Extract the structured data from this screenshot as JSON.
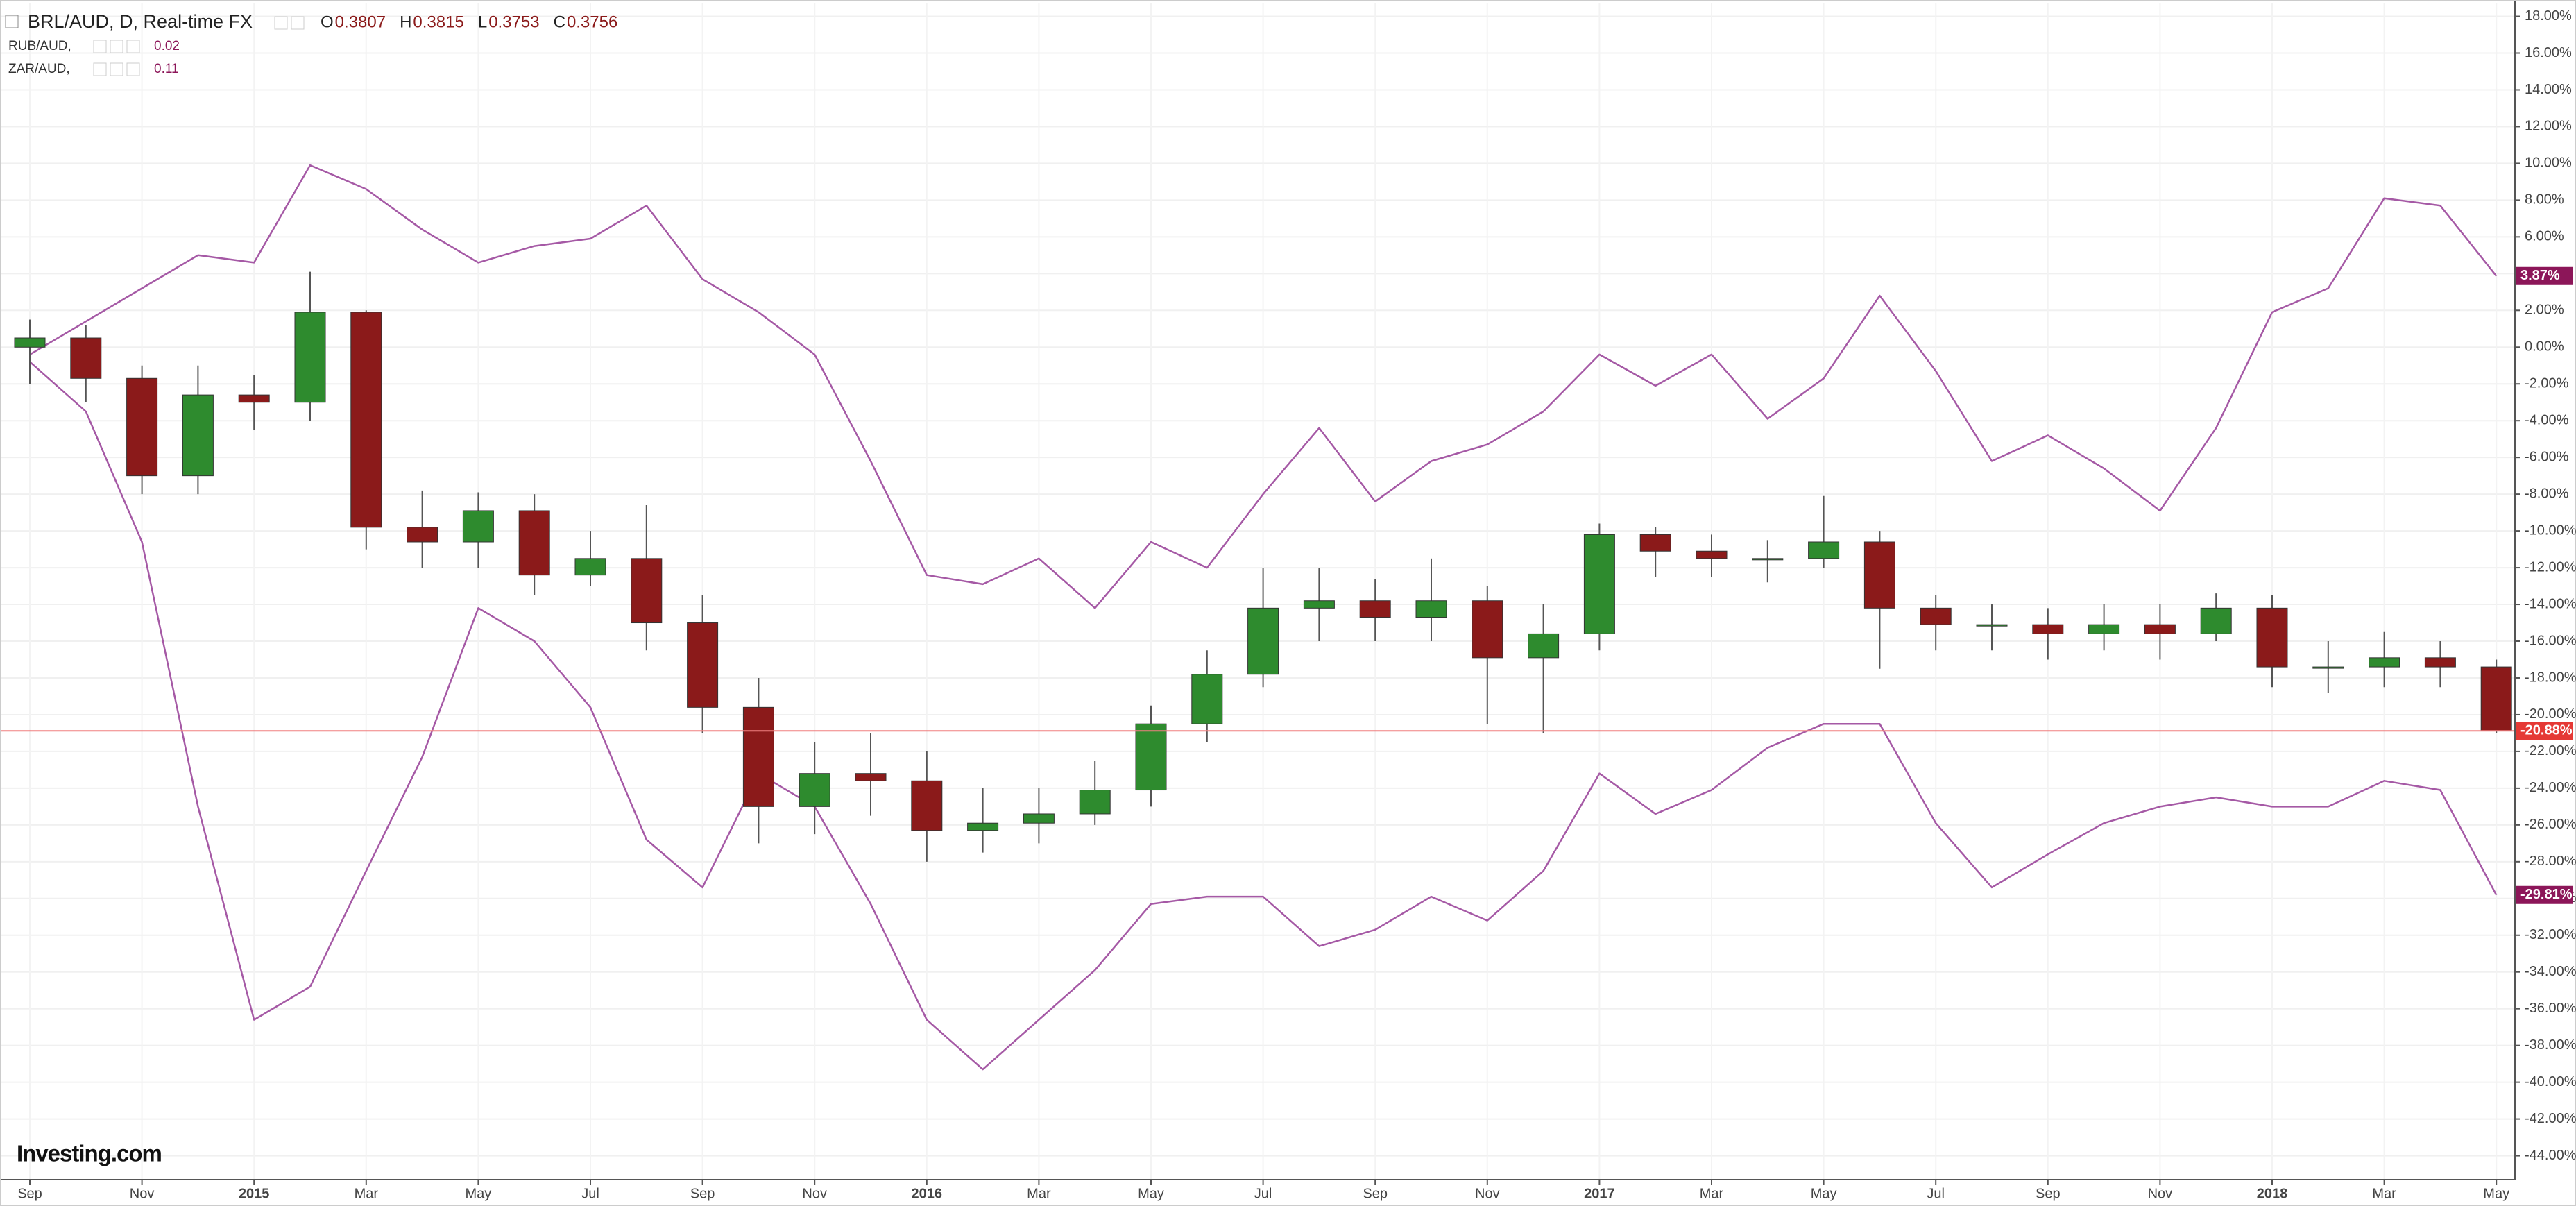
{
  "chart_data": {
    "type": "candlestick",
    "title": "BRL/AUD, D, Real-time FX",
    "ohlc_header": {
      "labels": [
        "O",
        "H",
        "L",
        "C"
      ],
      "values": [
        0.3807,
        0.3815,
        0.3753,
        0.3756
      ]
    },
    "logo": "Investing.com",
    "categories": [
      "Sep",
      null,
      "Nov",
      null,
      "2015",
      null,
      "Mar",
      null,
      "May",
      null,
      "Jul",
      null,
      "Sep",
      null,
      "Nov",
      null,
      "2016",
      null,
      "Mar",
      null,
      "May",
      null,
      "Jul",
      null,
      "Sep",
      null,
      "Nov",
      null,
      "2017",
      null,
      "Mar",
      null,
      "May",
      null,
      "Jul",
      null,
      "Sep",
      null,
      "Nov",
      null,
      "2018",
      null,
      "Mar",
      null,
      "May"
    ],
    "candles": {
      "name": "BRL/AUD",
      "up_color": "#2e8b2e",
      "down_color": "#8b1a1a",
      "price_line_color": "#f08080",
      "label_color": "#e53935",
      "open": [
        0,
        0.5,
        -1.7,
        -7,
        -2.6,
        -3,
        1.9,
        -9.8,
        -10.6,
        -8.9,
        -12.4,
        -11.5,
        -15,
        -19.6,
        -25,
        -23.2,
        -23.6,
        -26.3,
        -25.9,
        -25.4,
        -24.1,
        -20.5,
        -17.8,
        -14.2,
        -13.8,
        -14.7,
        -13.8,
        -16.9,
        -15.6,
        -10.2,
        -11.1,
        -11.5,
        -11.5,
        -10.6,
        -14.2,
        -15.1,
        -15.1,
        -15.6,
        -15.1,
        -15.6,
        -14.2,
        -17.4,
        -17.4,
        -16.9,
        -17.4
      ],
      "high": [
        1.5,
        1.2,
        -1,
        -1,
        -1.5,
        4.1,
        2,
        -7.8,
        -7.9,
        -8,
        -10,
        -8.6,
        -13.5,
        -18,
        -21.5,
        -21,
        -22,
        -24,
        -24,
        -22.5,
        -19.5,
        -16.5,
        -12,
        -12,
        -12.6,
        -11.5,
        -13,
        -14,
        -9.6,
        -9.8,
        -10.2,
        -10.5,
        -8.1,
        -10,
        -13.5,
        -14,
        -14.2,
        -14,
        -14,
        -13.4,
        -13.5,
        -16,
        -15.5,
        -16,
        -17
      ],
      "low": [
        -2,
        -3,
        -8,
        -8,
        -4.5,
        -4,
        -11,
        -12,
        -12,
        -13.5,
        -13,
        -16.5,
        -21,
        -27,
        -26.5,
        -25.5,
        -28,
        -27.5,
        -27,
        -26,
        -25,
        -21.5,
        -18.5,
        -16,
        -16,
        -16,
        -20.5,
        -21,
        -16.5,
        -12.5,
        -12.5,
        -12.8,
        -12,
        -17.5,
        -16.5,
        -16.5,
        -17,
        -16.5,
        -17,
        -16,
        -18.5,
        -18.8,
        -18.5,
        -18.5,
        -21
      ],
      "close": [
        0.5,
        -1.7,
        -7,
        -2.6,
        -3,
        1.9,
        -9.8,
        -10.6,
        -8.9,
        -12.4,
        -11.5,
        -15,
        -19.6,
        -25,
        -23.2,
        -23.6,
        -26.3,
        -25.9,
        -25.4,
        -24.1,
        -20.5,
        -17.8,
        -14.2,
        -13.8,
        -14.7,
        -13.8,
        -16.9,
        -15.6,
        -10.2,
        -11.1,
        -11.5,
        -11.5,
        -10.6,
        -14.2,
        -15.1,
        -15.1,
        -15.6,
        -15.1,
        -15.6,
        -14.2,
        -17.4,
        -17.4,
        -16.9,
        -17.4,
        -20.88
      ],
      "value_labels": [
        null,
        null,
        null,
        null,
        null,
        null,
        null,
        null,
        null,
        null,
        null,
        null,
        null,
        null,
        null,
        null,
        null,
        null,
        null,
        null,
        null,
        null,
        null,
        null,
        null,
        null,
        null,
        null,
        null,
        null,
        null,
        null,
        null,
        null,
        null,
        null,
        null,
        null,
        null,
        null,
        null,
        null,
        null,
        null,
        "-20.88%"
      ]
    },
    "series": [
      {
        "name": "RUB/AUD,",
        "legend_value": 0.02,
        "color": "#a559a5",
        "label_color": "#8c1659",
        "values": [
          -0.8,
          -3.5,
          -10.6,
          -25,
          -36.6,
          -34.8,
          -28.5,
          -22.3,
          -14.2,
          -16,
          -19.6,
          -26.8,
          -29.4,
          -23.2,
          -25,
          -30.3,
          -36.6,
          -39.3,
          -36.6,
          -33.9,
          -30.3,
          -29.9,
          -29.9,
          -32.6,
          -31.7,
          -29.9,
          -31.2,
          -28.5,
          -23.2,
          -25.4,
          -24.1,
          -21.8,
          -20.5,
          -20.5,
          -25.9,
          -29.4,
          -27.6,
          -25.9,
          -25,
          -24.5,
          -25,
          -25,
          -23.6,
          -24.1,
          -29.81
        ],
        "value_labels": [
          null,
          null,
          null,
          null,
          null,
          null,
          null,
          null,
          null,
          null,
          null,
          null,
          null,
          null,
          null,
          null,
          null,
          null,
          null,
          null,
          null,
          null,
          null,
          null,
          null,
          null,
          null,
          null,
          null,
          null,
          null,
          null,
          null,
          null,
          null,
          null,
          null,
          null,
          null,
          null,
          null,
          null,
          null,
          null,
          "-29.81%"
        ]
      },
      {
        "name": "ZAR/AUD,",
        "legend_value": 0.11,
        "color": "#a559a5",
        "label_color": "#8c1659",
        "values": [
          -0.4,
          1.4,
          3.2,
          5,
          4.6,
          9.9,
          8.6,
          6.4,
          4.6,
          5.5,
          5.9,
          7.7,
          3.7,
          1.9,
          -0.4,
          -6.2,
          -12.4,
          -12.9,
          -11.5,
          -14.2,
          -10.6,
          -12,
          -8,
          -4.4,
          -8.4,
          -6.2,
          -5.3,
          -3.5,
          -0.4,
          -2.1,
          -0.4,
          -3.9,
          -1.7,
          2.8,
          -1.3,
          -6.2,
          -4.8,
          -6.6,
          -8.9,
          -4.4,
          1.9,
          3.2,
          8.1,
          7.7,
          3.87
        ],
        "value_labels": [
          null,
          null,
          null,
          null,
          null,
          null,
          null,
          null,
          null,
          null,
          null,
          null,
          null,
          null,
          null,
          null,
          null,
          null,
          null,
          null,
          null,
          null,
          null,
          null,
          null,
          null,
          null,
          null,
          null,
          null,
          null,
          null,
          null,
          null,
          null,
          null,
          null,
          null,
          null,
          null,
          null,
          null,
          null,
          null,
          "3.87%"
        ]
      }
    ],
    "ylim": [
      -45.3,
      18.7
    ],
    "yticks": [
      {
        "value": 18,
        "label": "18.00%"
      },
      {
        "value": 16,
        "label": "16.00%"
      },
      {
        "value": 14,
        "label": "14.00%"
      },
      {
        "value": 12,
        "label": "12.00%"
      },
      {
        "value": 10,
        "label": "10.00%"
      },
      {
        "value": 8,
        "label": "8.00%"
      },
      {
        "value": 6,
        "label": "6.00%"
      },
      {
        "value": 4,
        "label": "4.00%"
      },
      {
        "value": 2,
        "label": "2.00%"
      },
      {
        "value": 0,
        "label": "0.00%"
      },
      {
        "value": -2,
        "label": "-2.00%"
      },
      {
        "value": -4,
        "label": "-4.00%"
      },
      {
        "value": -6,
        "label": "-6.00%"
      },
      {
        "value": -8,
        "label": "-8.00%"
      },
      {
        "value": -10,
        "label": "-10.00%"
      },
      {
        "value": -12,
        "label": "-12.00%"
      },
      {
        "value": -14,
        "label": "-14.00%"
      },
      {
        "value": -16,
        "label": "-16.00%"
      },
      {
        "value": -18,
        "label": "-18.00%"
      },
      {
        "value": -20,
        "label": "-20.00%"
      },
      {
        "value": -22,
        "label": "-22.00%"
      },
      {
        "value": -24,
        "label": "-24.00%"
      },
      {
        "value": -26,
        "label": "-26.00%"
      },
      {
        "value": -28,
        "label": "-28.00%"
      },
      {
        "value": -30,
        "label": "-30.00%"
      },
      {
        "value": -32,
        "label": "-32.00%"
      },
      {
        "value": -34,
        "label": "-34.00%"
      },
      {
        "value": -36,
        "label": "-36.00%"
      },
      {
        "value": -38,
        "label": "-38.00%"
      },
      {
        "value": -40,
        "label": "-40.00%"
      },
      {
        "value": -42,
        "label": "-42.00%"
      },
      {
        "value": -44,
        "label": "-44.00%"
      }
    ],
    "grid": true
  }
}
